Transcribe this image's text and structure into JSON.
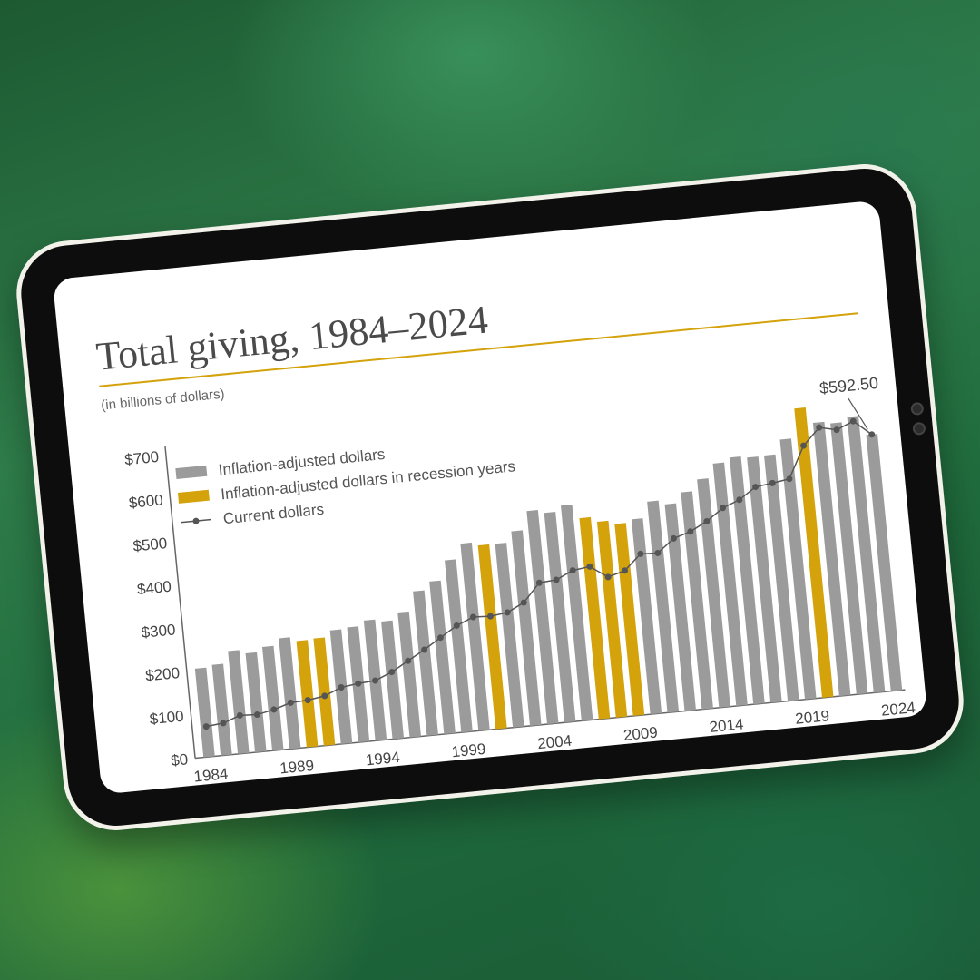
{
  "chart_data": {
    "type": "bar",
    "title": "Total giving, 1984–2024",
    "subtitle": "(in billions of dollars)",
    "ylim": [
      0,
      700
    ],
    "y_ticks": [
      "$0",
      "$100",
      "$200",
      "$300",
      "$400",
      "$500",
      "$600",
      "$700"
    ],
    "y_tick_values": [
      0,
      100,
      200,
      300,
      400,
      500,
      600,
      700
    ],
    "x_tick_labels": [
      "1984",
      "1989",
      "1994",
      "1999",
      "2004",
      "2009",
      "2014",
      "2019",
      "2024"
    ],
    "legend_placement": "top-left",
    "categories": [
      "1984",
      "1985",
      "1986",
      "1987",
      "1988",
      "1989",
      "1990",
      "1991",
      "1992",
      "1993",
      "1994",
      "1995",
      "1996",
      "1997",
      "1998",
      "1999",
      "2000",
      "2001",
      "2002",
      "2003",
      "2004",
      "2005",
      "2006",
      "2007",
      "2008",
      "2009",
      "2010",
      "2011",
      "2012",
      "2013",
      "2014",
      "2015",
      "2016",
      "2017",
      "2018",
      "2019",
      "2020",
      "2021",
      "2022",
      "2023",
      "2024"
    ],
    "series": [
      {
        "name": "Inflation-adjusted dollars",
        "color": "#9b9b9b",
        "values": [
          205,
          210,
          238,
          229,
          240,
          256,
          246,
          248,
          263,
          266,
          278,
          272,
          289,
          334,
          353,
          398,
          433,
          425,
          425,
          450,
          493,
          485,
          498,
          465,
          453,
          444,
          451,
          488,
          478,
          502,
          528,
          561,
          571,
          567,
          568,
          601,
          669,
          632,
          627,
          638,
          592.5
        ]
      },
      {
        "name": "Inflation-adjusted dollars in recession years",
        "color": "#d4a20b",
        "years": [
          "1990",
          "1991",
          "2001",
          "2007",
          "2008",
          "2009",
          "2020"
        ]
      },
      {
        "name": "Current dollars",
        "color": "#555555",
        "values": [
          70,
          74,
          88,
          86,
          94,
          106,
          108,
          114,
          130,
          135,
          138,
          154,
          176,
          198,
          222,
          246,
          262,
          260,
          265,
          284,
          326,
          329,
          347,
          352,
          324,
          335,
          370,
          368,
          398,
          410,
          430,
          457,
          472,
          498,
          503,
          509,
          582,
          620,
          611,
          627,
          592.5
        ]
      }
    ],
    "annotations": [
      {
        "text": "$592.50",
        "x": "2024",
        "y": 592.5
      }
    ]
  },
  "colors": {
    "accent": "#d4a20b",
    "bar": "#9b9b9b",
    "line": "#555555",
    "title": "#4a4a4a"
  }
}
